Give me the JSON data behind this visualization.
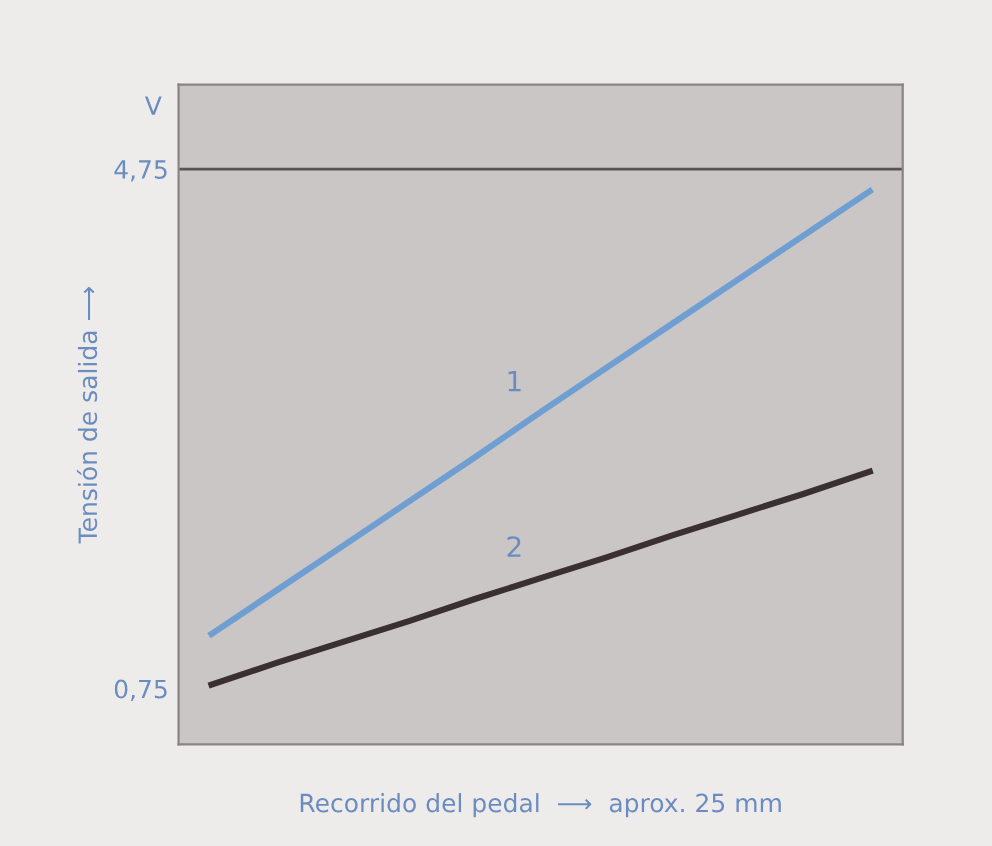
{
  "chart_data": {
    "type": "line",
    "xlabel": "Recorrido del pedal  ⟶  aprox. 25 mm",
    "ylabel": "Tensión de salida ⟶",
    "annotations": [
      "V"
    ],
    "categories": [
      null,
      null,
      null,
      null,
      null,
      null,
      null,
      null,
      null,
      null,
      null
    ],
    "series": [
      {
        "name": "1",
        "color": "#6f9fd2",
        "values": [
          1.17,
          1.51,
          1.85,
          2.19,
          2.53,
          2.88,
          3.22,
          3.56,
          3.9,
          4.24,
          4.58
        ]
      },
      {
        "name": "2",
        "color": "#3a3030",
        "values": [
          0.78,
          0.95,
          1.11,
          1.27,
          1.44,
          1.6,
          1.76,
          1.93,
          2.09,
          2.25,
          2.42
        ]
      }
    ],
    "ylim": [
      0.32,
      5.4
    ],
    "yticks": [
      {
        "value": 0.75,
        "label": "0,75"
      },
      {
        "value": 4.75,
        "label": "4,75"
      }
    ],
    "ref_lines": [
      {
        "axis": "y",
        "value": 4.75,
        "label": null,
        "color": "#5a5555"
      }
    ],
    "grid": false,
    "legend": false,
    "marker": "none",
    "line_style": "solid"
  }
}
